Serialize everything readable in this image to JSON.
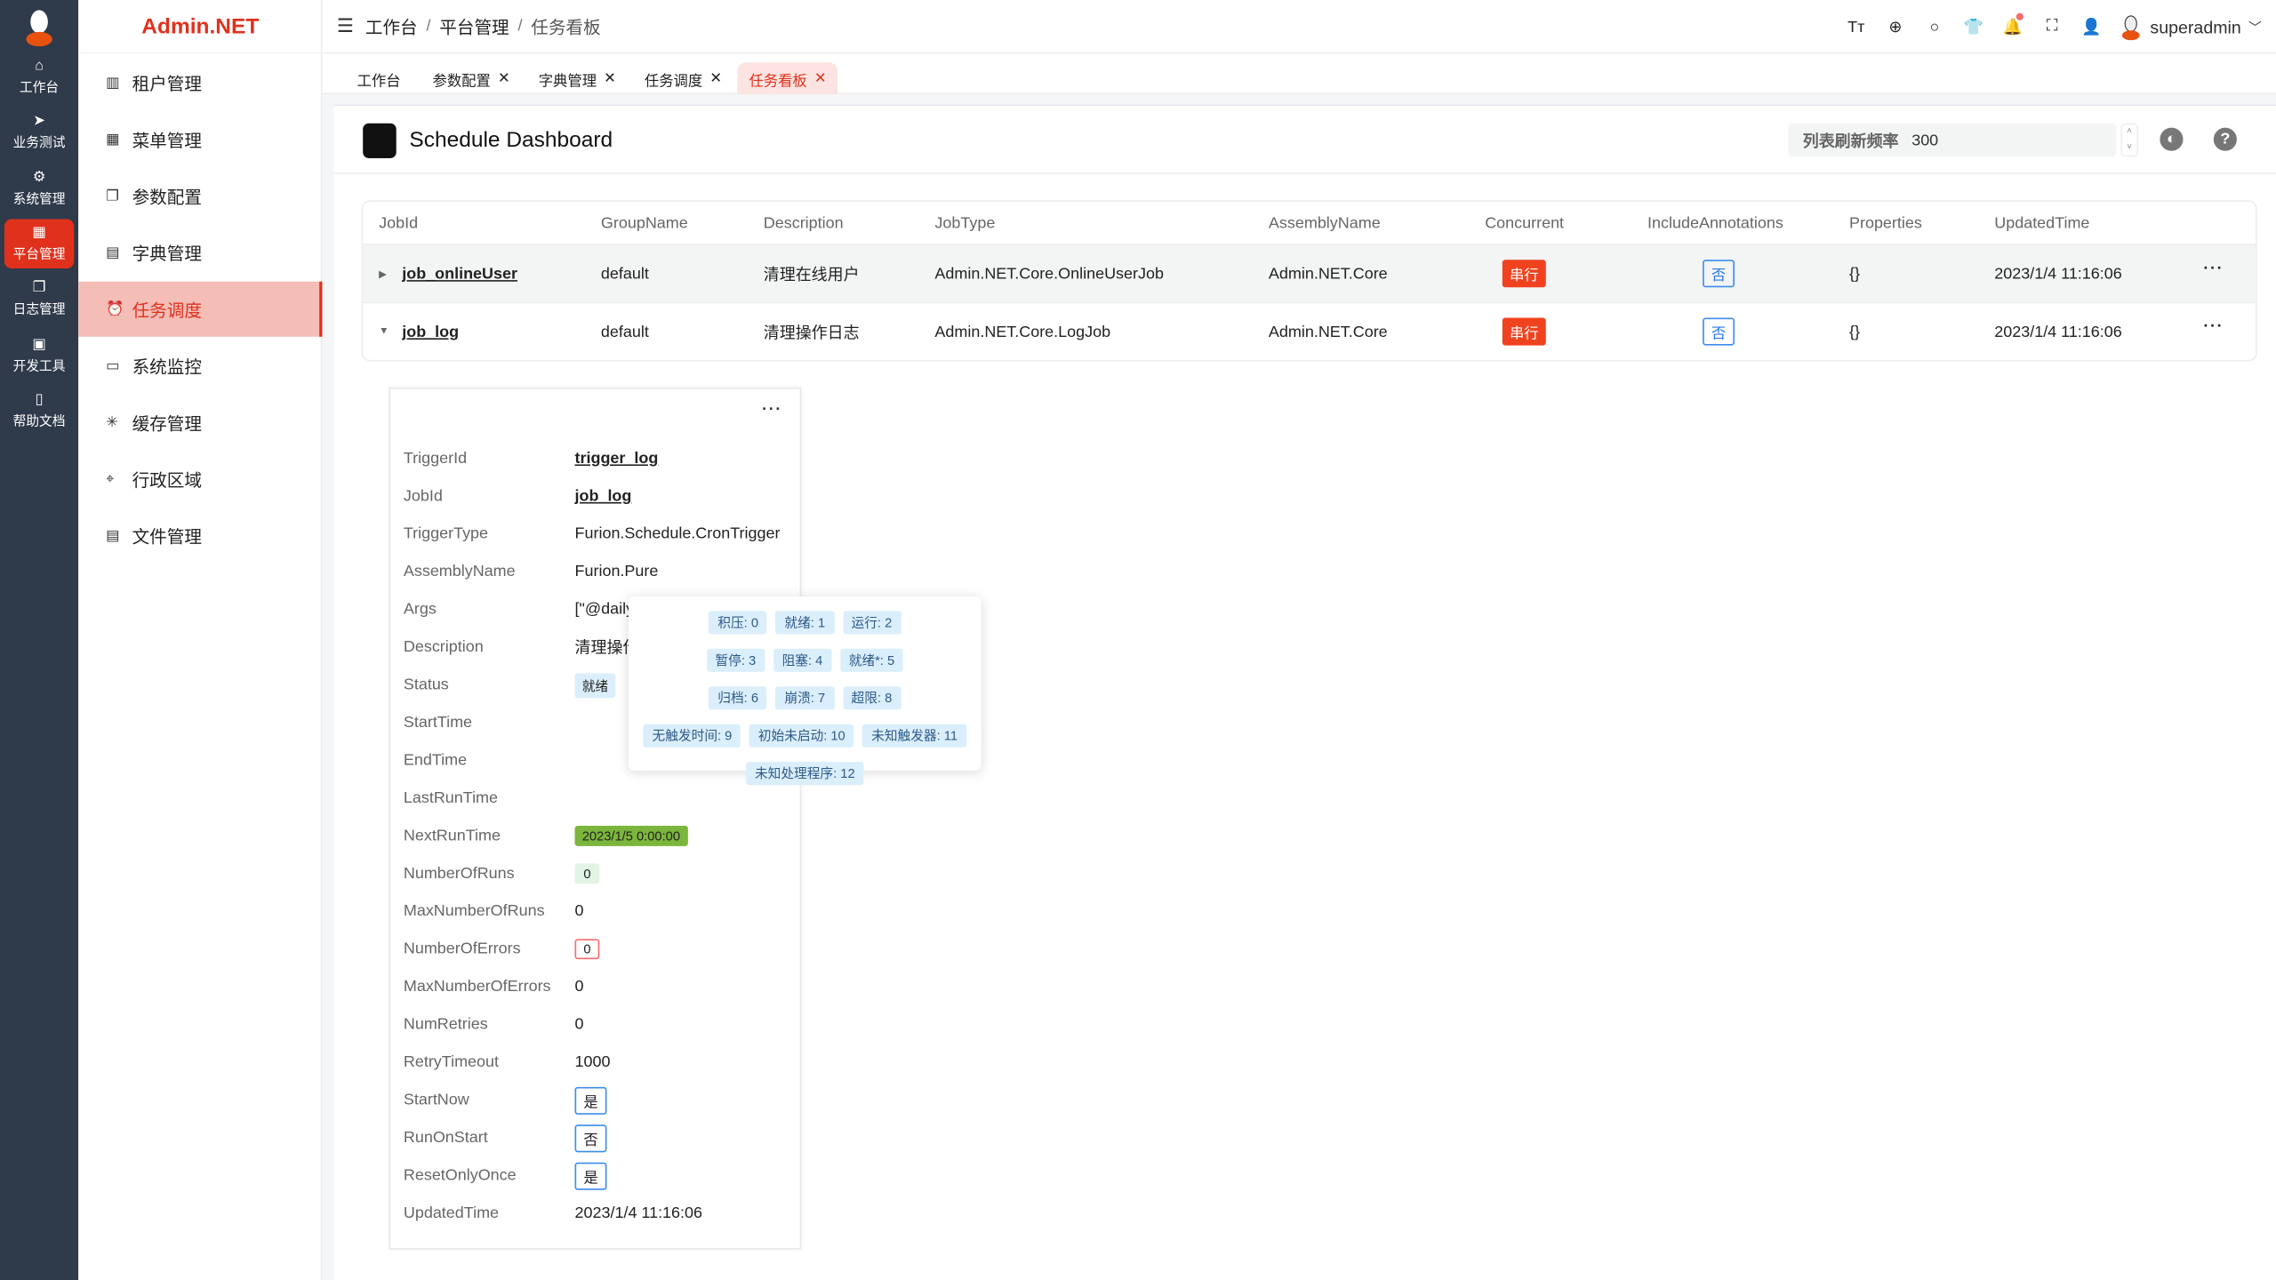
{
  "rail": {
    "items": [
      {
        "icon": "home-icon",
        "label": "工作台"
      },
      {
        "icon": "send-icon",
        "label": "业务测试"
      },
      {
        "icon": "gear-icon",
        "label": "系统管理"
      },
      {
        "icon": "grid-icon",
        "label": "平台管理",
        "active": true
      },
      {
        "icon": "copy-icon",
        "label": "日志管理"
      },
      {
        "icon": "chip-icon",
        "label": "开发工具"
      },
      {
        "icon": "book-icon",
        "label": "帮助文档"
      }
    ]
  },
  "brand": "Admin.NET",
  "submenu": {
    "items": [
      {
        "icon": "building-icon",
        "label": "租户管理"
      },
      {
        "icon": "grid-icon",
        "label": "菜单管理"
      },
      {
        "icon": "copy-icon",
        "label": "参数配置"
      },
      {
        "icon": "book-icon",
        "label": "字典管理"
      },
      {
        "icon": "alarm-clock-icon",
        "label": "任务调度",
        "active": true
      },
      {
        "icon": "monitor-icon",
        "label": "系统监控"
      },
      {
        "icon": "loading-icon",
        "label": "缓存管理"
      },
      {
        "icon": "location-icon",
        "label": "行政区域"
      },
      {
        "icon": "document-icon",
        "label": "文件管理"
      }
    ]
  },
  "breadcrumb": [
    "工作台",
    "平台管理",
    "任务看板"
  ],
  "header": {
    "username": "superadmin",
    "icons": [
      "font-size-icon",
      "language-icon",
      "search-icon",
      "theme-shirt-icon",
      "bell-icon",
      "fullscreen-icon",
      "user-icon"
    ]
  },
  "tabs": [
    {
      "label": "工作台",
      "closable": false
    },
    {
      "label": "参数配置",
      "closable": true
    },
    {
      "label": "字典管理",
      "closable": true
    },
    {
      "label": "任务调度",
      "closable": true
    },
    {
      "label": "任务看板",
      "closable": true,
      "active": true
    }
  ],
  "colors": {
    "accent": "#e0311c",
    "rail": "#2f3a4b",
    "active_submenu": "#f4bdb6"
  },
  "dashboard": {
    "title": "Schedule Dashboard",
    "refresh_label": "列表刷新频率",
    "refresh_value": "300"
  },
  "table": {
    "columns": [
      "JobId",
      "GroupName",
      "Description",
      "JobType",
      "AssemblyName",
      "Concurrent",
      "IncludeAnnotations",
      "Properties",
      "UpdatedTime"
    ],
    "rows": [
      {
        "jobId": "job_onlineUser",
        "group": "default",
        "desc": "清理在线用户",
        "type": "Admin.NET.Core.OnlineUserJob",
        "assembly": "Admin.NET.Core",
        "concurrent": "串行",
        "annotations": "否",
        "props": "{}",
        "updated": "2023/1/4 11:16:06",
        "expanded": false
      },
      {
        "jobId": "job_log",
        "group": "default",
        "desc": "清理操作日志",
        "type": "Admin.NET.Core.LogJob",
        "assembly": "Admin.NET.Core",
        "concurrent": "串行",
        "annotations": "否",
        "props": "{}",
        "updated": "2023/1/4 11:16:06",
        "expanded": true
      }
    ]
  },
  "trigger": {
    "TriggerId": "trigger_log",
    "JobId": "job_log",
    "TriggerType": "Furion.Schedule.CronTrigger",
    "AssemblyName": "Furion.Pure",
    "Args": "[\"@daily",
    "Description": "清理操作",
    "Status": "就绪",
    "StartTime": "",
    "EndTime": "",
    "LastRunTime": "",
    "NextRunTime": "2023/1/5 0:00:00",
    "NumberOfRuns": "0",
    "MaxNumberOfRuns": "0",
    "NumberOfErrors": "0",
    "MaxNumberOfErrors": "0",
    "NumRetries": "0",
    "RetryTimeout": "1000",
    "StartNow": "是",
    "RunOnStart": "否",
    "ResetOnlyOnce": "是",
    "UpdatedTime": "2023/1/4 11:16:06"
  },
  "status_legend": [
    "积压: 0",
    "就绪: 1",
    "运行: 2",
    "暂停: 3",
    "阻塞: 4",
    "就绪*: 5",
    "归档: 6",
    "崩溃: 7",
    "超限: 8",
    "无触发时间: 9",
    "初始未启动: 10",
    "未知触发器: 11",
    "未知处理程序: 12"
  ]
}
